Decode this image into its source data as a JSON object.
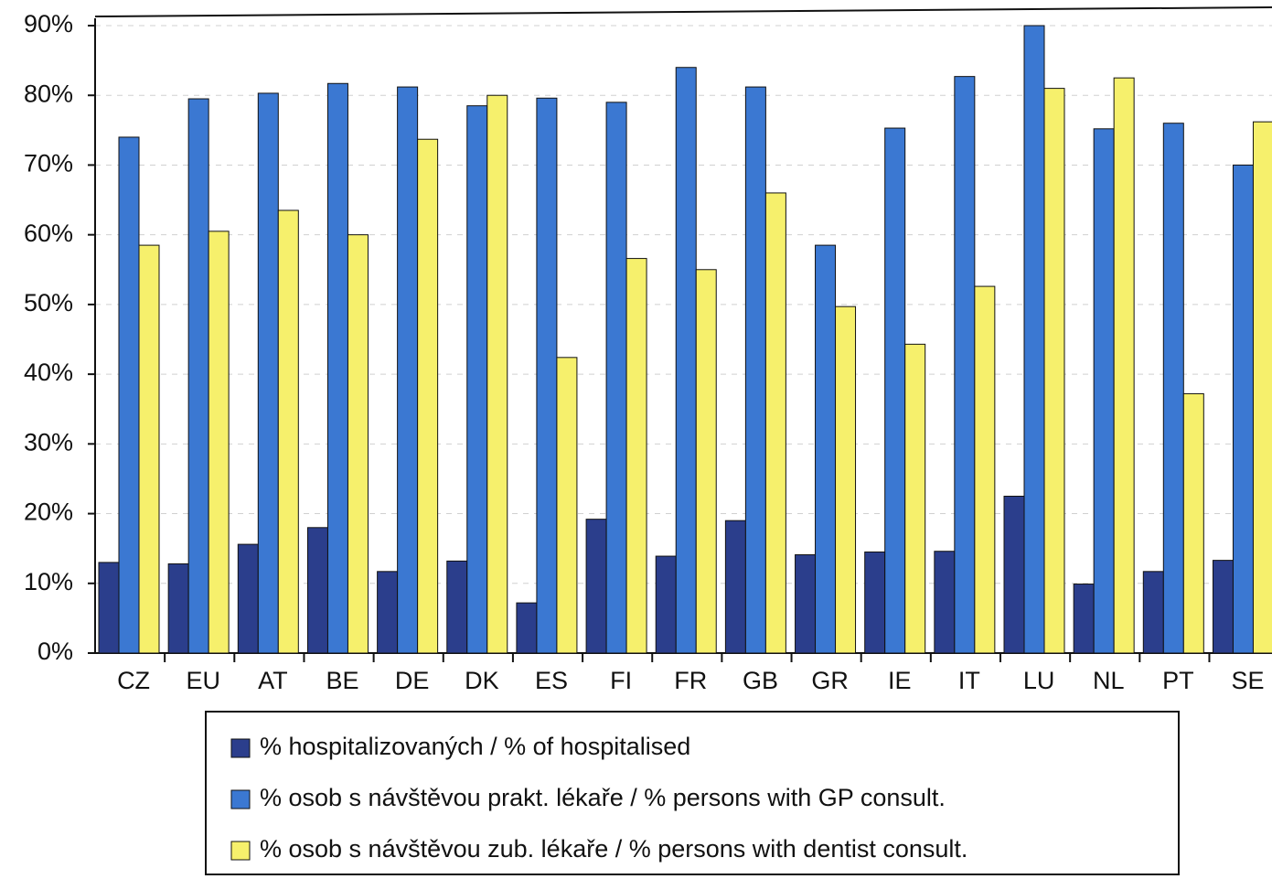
{
  "chart_data": {
    "type": "bar",
    "categories": [
      "CZ",
      "EU",
      "AT",
      "BE",
      "DE",
      "DK",
      "ES",
      "FI",
      "FR",
      "GB",
      "GR",
      "IE",
      "IT",
      "LU",
      "NL",
      "PT",
      "SE"
    ],
    "series": [
      {
        "name": "% hospitalizovaných / % of hospitalised",
        "color": "#2b3e8c",
        "values": [
          13,
          12.8,
          15.6,
          18,
          11.7,
          13.2,
          7.2,
          19.2,
          13.9,
          19,
          14.1,
          14.5,
          14.6,
          22.5,
          9.9,
          11.7,
          13.3
        ]
      },
      {
        "name": "% osob s návštěvou prakt. lékaře / % persons with GP consult.",
        "color": "#3b78d2",
        "values": [
          74,
          79.5,
          80.3,
          81.7,
          81.2,
          78.5,
          79.6,
          79,
          84,
          81.2,
          58.5,
          75.3,
          82.7,
          90,
          75.2,
          76,
          70
        ]
      },
      {
        "name": "% osob s návštěvou zub. lékaře / % persons with dentist consult.",
        "color": "#f6f06c",
        "values": [
          58.5,
          60.5,
          63.5,
          60,
          73.7,
          80,
          42.4,
          56.6,
          55,
          66,
          49.7,
          44.3,
          52.6,
          81,
          82.5,
          37.2,
          76.2
        ]
      }
    ],
    "ylim": [
      0,
      90
    ],
    "yticks": [
      {
        "value": 0,
        "label": "0%"
      },
      {
        "value": 10,
        "label": "10%"
      },
      {
        "value": 20,
        "label": "20%"
      },
      {
        "value": 30,
        "label": "30%"
      },
      {
        "value": 40,
        "label": "40%"
      },
      {
        "value": 50,
        "label": "50%"
      },
      {
        "value": 60,
        "label": "60%"
      },
      {
        "value": 70,
        "label": "70%"
      },
      {
        "value": 80,
        "label": "80%"
      },
      {
        "value": 90,
        "label": "90%"
      }
    ],
    "grid": true
  }
}
